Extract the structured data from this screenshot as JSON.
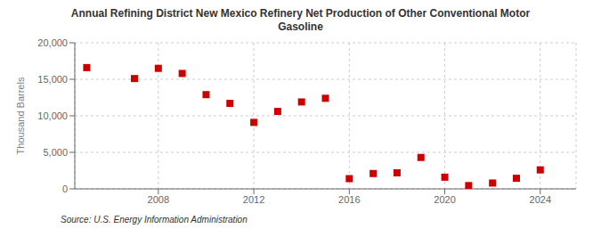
{
  "chart_data": {
    "type": "scatter",
    "title": "Annual Refining District New Mexico Refinery Net Production of Other Conventional Motor\nGasoline",
    "ylabel": "Thousand Barrels",
    "source": "Source: U.S. Energy Information Administration",
    "x": [
      2005,
      2007,
      2008,
      2009,
      2010,
      2011,
      2012,
      2013,
      2014,
      2015,
      2016,
      2017,
      2018,
      2019,
      2020,
      2021,
      2022,
      2023,
      2024
    ],
    "values": [
      16600,
      15100,
      16500,
      15800,
      12900,
      11700,
      9100,
      10600,
      11900,
      12400,
      1400,
      2100,
      2200,
      4300,
      1600,
      450,
      800,
      1450,
      2600
    ],
    "color": "#cc0000",
    "marker": "square",
    "xlim": [
      2004.5,
      2025.5
    ],
    "ylim": [
      0,
      20000
    ],
    "xticks": [
      2008,
      2012,
      2016,
      2020,
      2024
    ],
    "yticks": [
      0,
      {
        "value": 5000,
        "label": "5,000"
      },
      {
        "value": 10000,
        "label": "10,000"
      },
      {
        "value": 15000,
        "label": "15,000"
      },
      {
        "value": 20000,
        "label": "20,000"
      }
    ],
    "grid": true
  }
}
